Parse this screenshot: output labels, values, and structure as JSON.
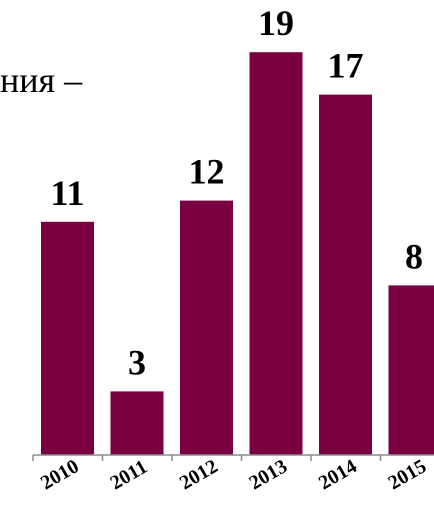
{
  "text_fragment": "ния –",
  "colors": {
    "bar": "#7b0041",
    "axis": "#8c8c8c"
  },
  "chart_data": {
    "type": "bar",
    "categories": [
      "2010",
      "2011",
      "2012",
      "2013",
      "2014",
      "2015"
    ],
    "values": [
      11,
      3,
      12,
      19,
      17,
      8
    ],
    "title": "",
    "xlabel": "",
    "ylabel": "",
    "ylim": [
      0,
      20
    ],
    "grid": false,
    "data_labels": true
  }
}
